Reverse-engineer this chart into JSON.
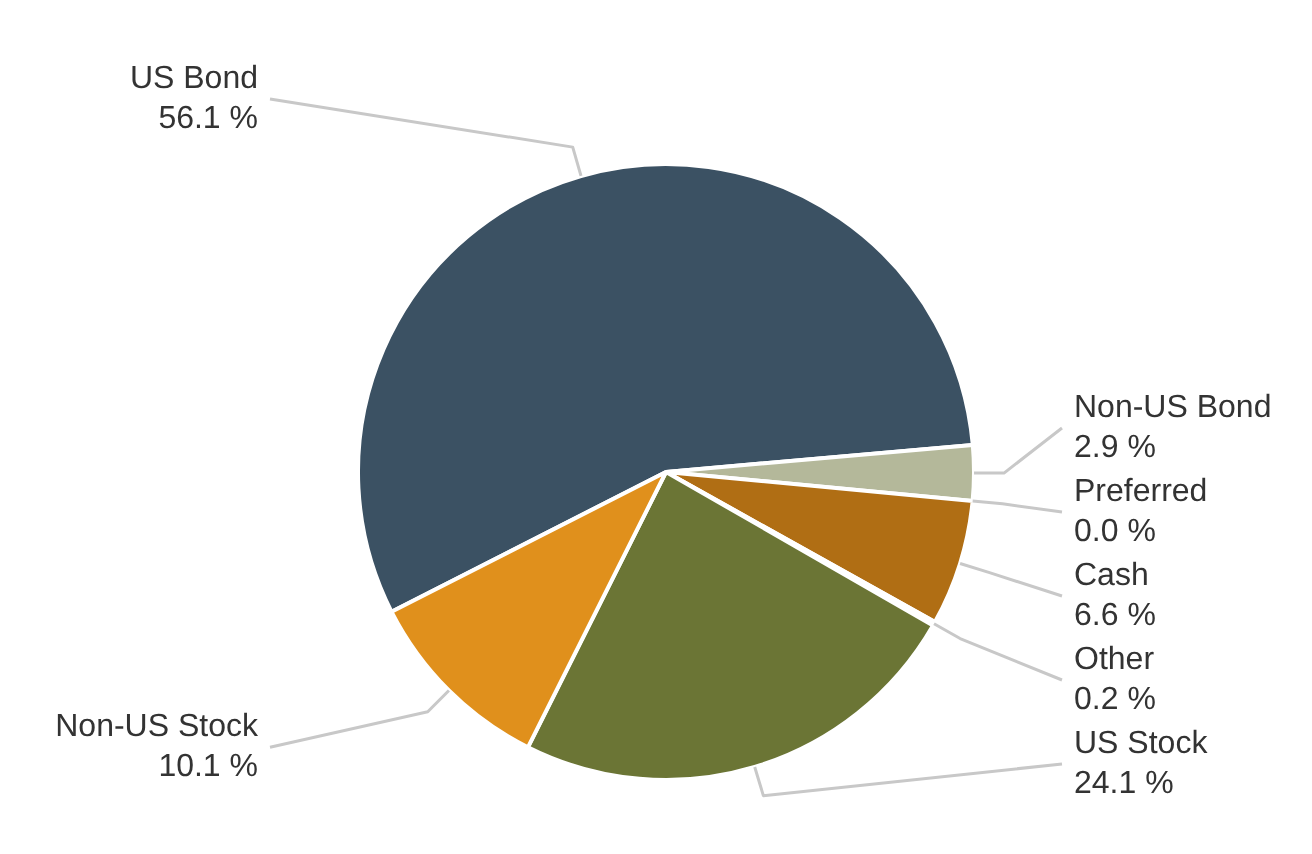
{
  "chart_data": {
    "type": "pie",
    "categories": [
      "US Bond",
      "Non-US Bond",
      "Preferred",
      "Cash",
      "Other",
      "US Stock",
      "Non-US Stock"
    ],
    "values": [
      56.1,
      2.9,
      0.0,
      6.6,
      0.2,
      24.1,
      10.1
    ],
    "colors": [
      "#3b5163",
      "#b4b89a",
      "#8c8c8c",
      "#b06e14",
      "#e8e8e8",
      "#6b7535",
      "#e0901c"
    ],
    "value_labels": [
      "56.1 %",
      "2.9 %",
      "0.0 %",
      "6.6 %",
      "0.2 %",
      "24.1 %",
      "10.1 %"
    ]
  }
}
